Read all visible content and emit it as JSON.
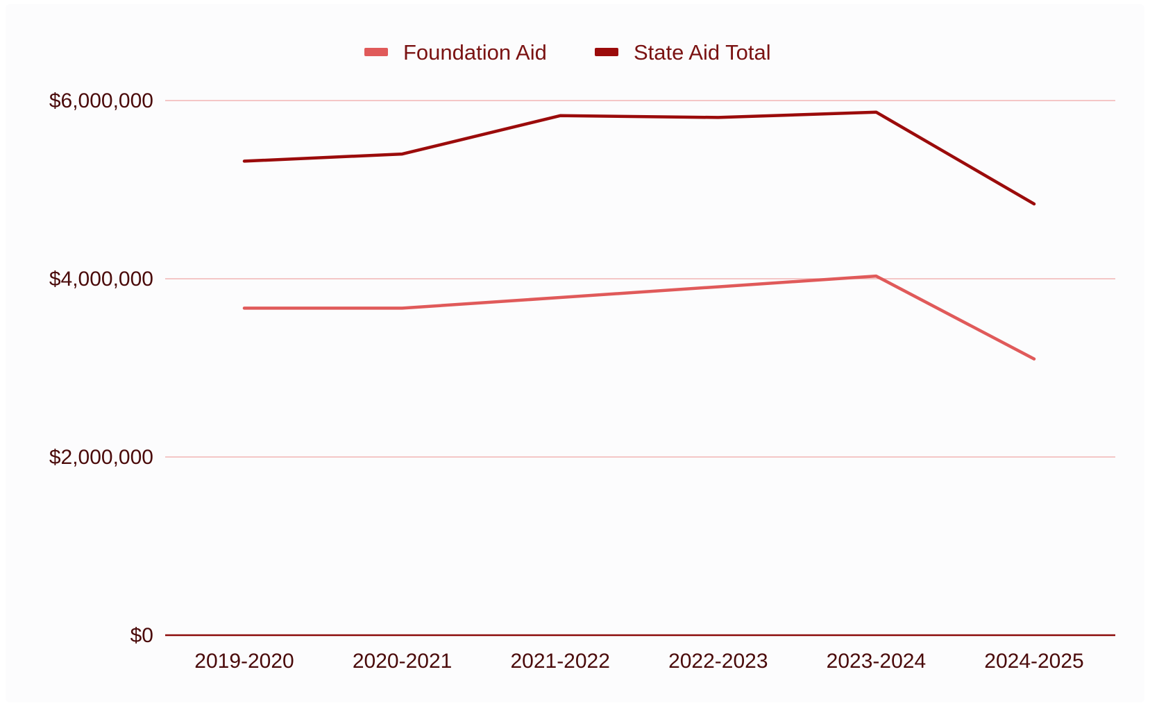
{
  "chart_data": {
    "type": "line",
    "title": "",
    "xlabel": "",
    "ylabel": "",
    "categories": [
      "2019-2020",
      "2020-2021",
      "2021-2022",
      "2022-2023",
      "2023-2024",
      "2024-2025"
    ],
    "ylim": [
      0,
      6000000
    ],
    "yticks": [
      0,
      2000000,
      4000000,
      6000000
    ],
    "ytick_labels": [
      "$0",
      "$2,000,000",
      "$4,000,000",
      "$6,000,000"
    ],
    "grid": true,
    "legend_position": "top-center",
    "series": [
      {
        "name": "Foundation Aid",
        "color": "#e05a5a",
        "values": [
          3670000,
          3670000,
          3790000,
          3910000,
          4030000,
          3100000
        ]
      },
      {
        "name": "State Aid Total",
        "color": "#9b0b0b",
        "values": [
          5320000,
          5400000,
          5830000,
          5810000,
          5870000,
          4840000
        ]
      }
    ],
    "colors": {
      "background": "#fcfcfd",
      "gridline": "#f1b3b3",
      "baseline": "#8b0a0a",
      "text": "#4a0a0a"
    }
  }
}
